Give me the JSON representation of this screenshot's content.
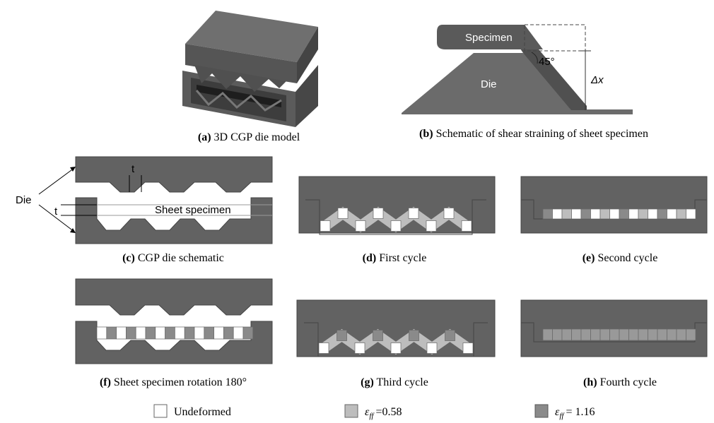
{
  "panels": [
    {
      "label": "(a)",
      "caption": "3D CGP die model"
    },
    {
      "label": "(b)",
      "caption": "Schematic of shear straining of sheet specimen"
    },
    {
      "label": "(c)",
      "caption": "CGP die schematic"
    },
    {
      "label": "(d)",
      "caption": "First cycle"
    },
    {
      "label": "(e)",
      "caption": "Second cycle"
    },
    {
      "label": "(f)",
      "caption": "Sheet specimen rotation 180°"
    },
    {
      "label": "(g)",
      "caption": "Third cycle"
    },
    {
      "label": "(h)",
      "caption": "Fourth cycle"
    }
  ],
  "schematic_b": {
    "specimen": "Specimen",
    "die": "Die",
    "angle": "45°",
    "displacement": "Δx"
  },
  "schematic_c": {
    "die": "Die",
    "thickness_top": "t",
    "thickness_side": "t",
    "sheet": "Sheet specimen"
  },
  "legend": [
    {
      "text": "Undeformed"
    },
    {
      "symbol": "ε",
      "subscript": "ff",
      "text": "=0.58"
    },
    {
      "symbol": "ε",
      "subscript": "ff",
      "text": "= 1.16"
    }
  ]
}
